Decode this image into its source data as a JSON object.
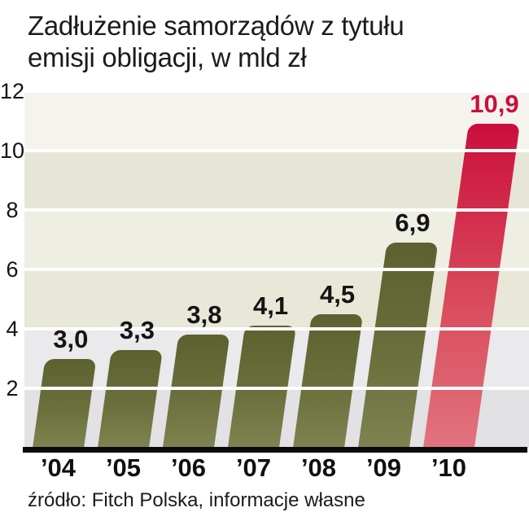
{
  "title": {
    "line1": "Zadłużenie samorządów z tytułu",
    "line2": "emisji obligacji, w mld zł"
  },
  "source": "źródło: Fitch Polska, informacje własne",
  "chart_data": {
    "type": "bar",
    "title": "Zadłużenie samorządów z tytułu emisji obligacji, w mld zł",
    "categories": [
      "’04",
      "’05",
      "’06",
      "’07",
      "’08",
      "’09",
      "’10"
    ],
    "values": [
      3.0,
      3.3,
      3.8,
      4.1,
      4.5,
      6.9,
      10.9
    ],
    "value_labels": [
      "3,0",
      "3,3",
      "3,8",
      "4,1",
      "4,5",
      "6,9",
      "10,9"
    ],
    "unit": "mld zł",
    "xlabel": "",
    "ylabel": "mld zł",
    "ylim": [
      0,
      12
    ],
    "yticks": [
      2,
      4,
      6,
      8,
      10,
      12
    ],
    "grid": true,
    "legend": false,
    "highlight_index": 6,
    "colors": {
      "bar_default_top": "#5c612f",
      "bar_default_mid": "#6a6f3c",
      "bar_default_bottom": "#7e8350",
      "bar_highlight_top": "#cb0e3c",
      "bar_highlight_mid": "#d94b5c",
      "bar_highlight_bottom": "#e2737f",
      "highlight_label": "#cb0e3c",
      "label": "#141414",
      "gridline": "#ffffff",
      "axis_line": "#0a0a0a",
      "band_colors": [
        "#f4f3ee",
        "#e7e6d6",
        "#efeee3",
        "#e8e7d8",
        "#eae9eb",
        "#e2e1e4"
      ]
    }
  }
}
